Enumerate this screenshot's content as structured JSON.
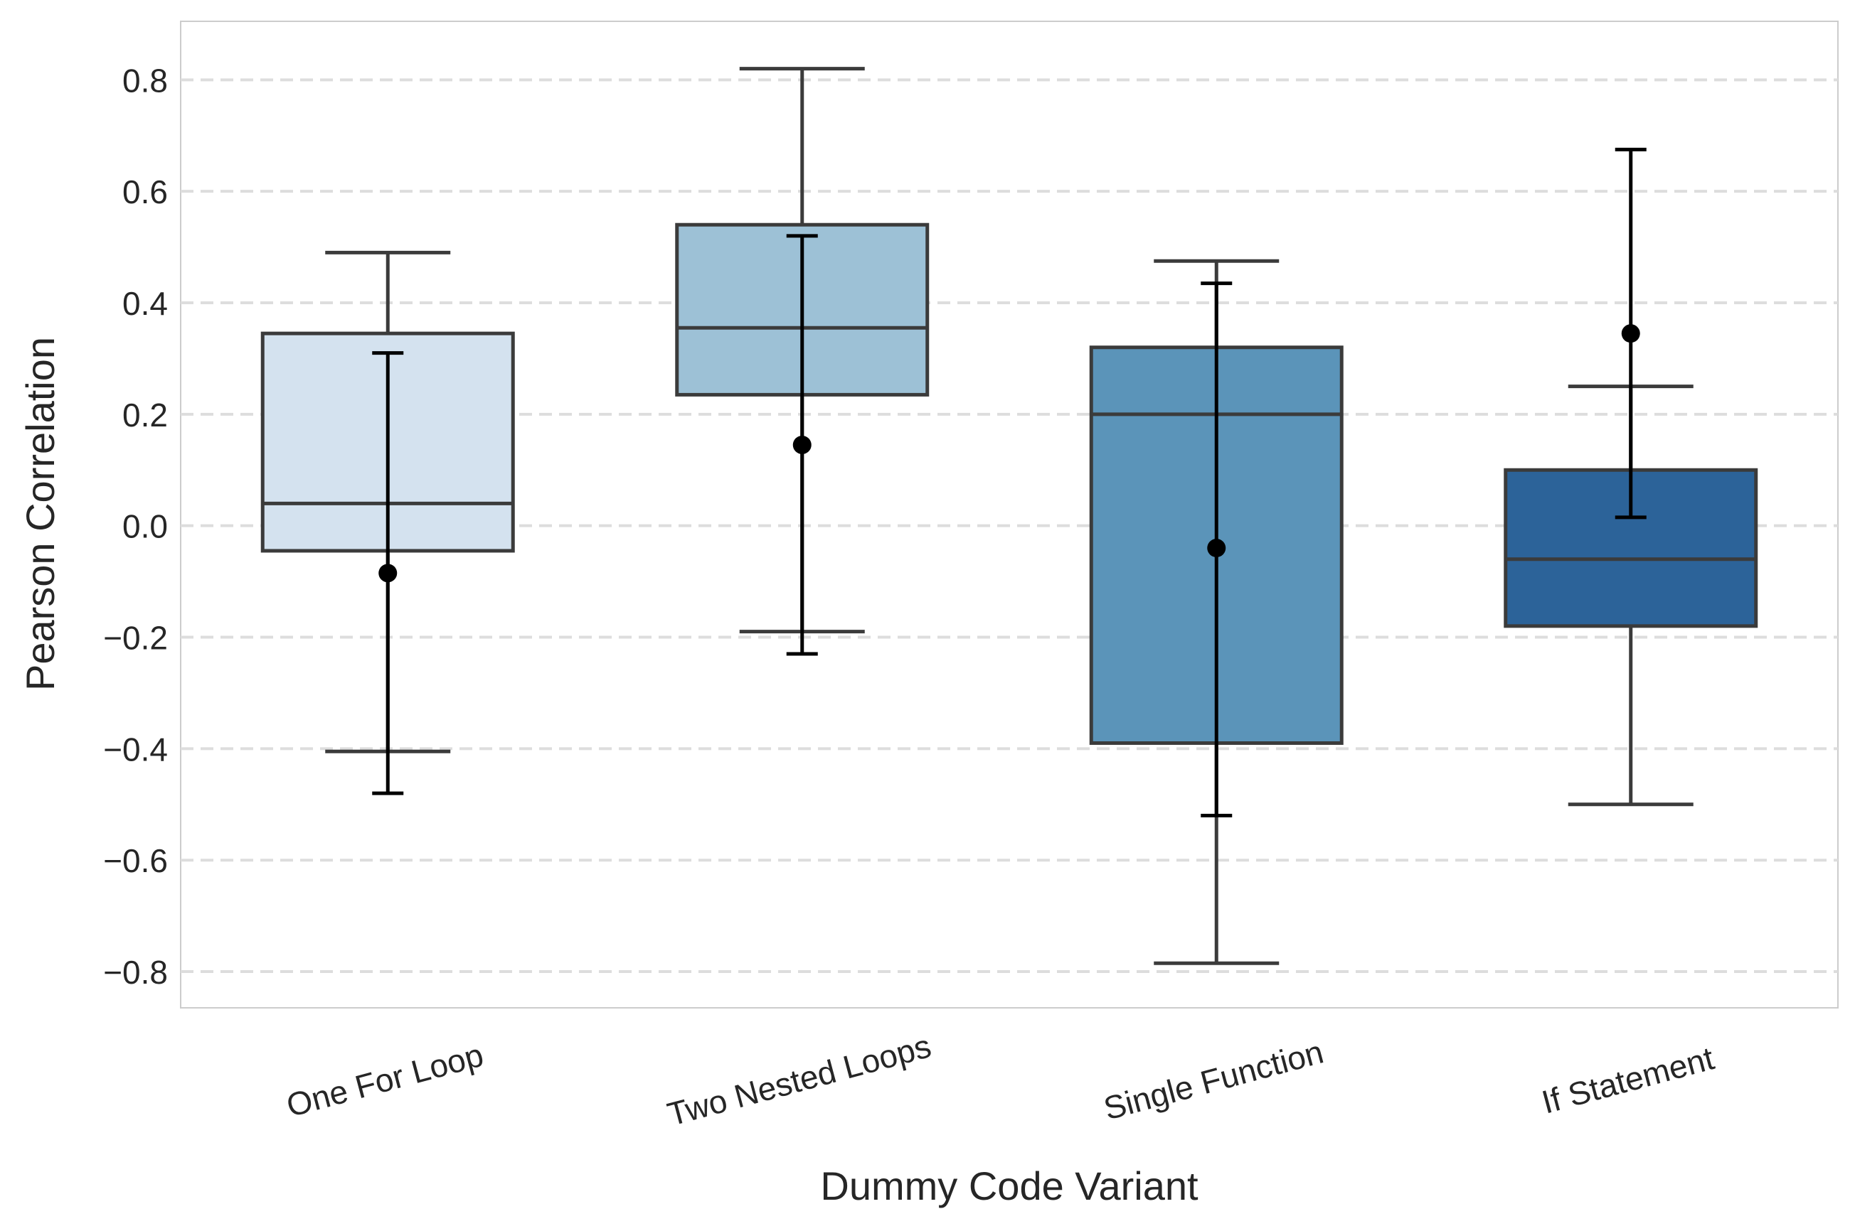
{
  "chart_data": {
    "type": "box",
    "xlabel": "Dummy Code Variant",
    "ylabel": "Pearson Correlation",
    "ylim": [
      -0.865,
      0.905
    ],
    "yticks": [
      0.8,
      0.6,
      0.4,
      0.2,
      0.0,
      -0.2,
      -0.4,
      -0.6,
      -0.8
    ],
    "ytick_labels": [
      "0.8",
      "0.6",
      "0.4",
      "0.2",
      "0.0",
      "−0.2",
      "−0.4",
      "−0.6",
      "−0.8"
    ],
    "grid": "horizontal dashed",
    "categories": [
      "One For Loop",
      "Two Nested Loops",
      "Single Function",
      "If Statement"
    ],
    "boxes": [
      {
        "label": "One For Loop",
        "whisker_low": -0.405,
        "q1": -0.045,
        "median": 0.04,
        "q3": 0.345,
        "whisker_high": 0.49,
        "color": "#d4e2ef"
      },
      {
        "label": "Two Nested Loops",
        "whisker_low": -0.19,
        "q1": 0.235,
        "median": 0.355,
        "q3": 0.54,
        "whisker_high": 0.82,
        "color": "#9dc1d6"
      },
      {
        "label": "Single Function",
        "whisker_low": -0.785,
        "q1": -0.39,
        "median": 0.2,
        "q3": 0.32,
        "whisker_high": 0.475,
        "color": "#5b94b9"
      },
      {
        "label": "If Statement",
        "whisker_low": -0.5,
        "q1": -0.18,
        "median": -0.06,
        "q3": 0.1,
        "whisker_high": 0.25,
        "color": "#2c6399"
      }
    ],
    "mean_points": [
      {
        "label": "One For Loop",
        "mean": -0.085,
        "ci_low": -0.48,
        "ci_high": 0.31
      },
      {
        "label": "Two Nested Loops",
        "mean": 0.145,
        "ci_low": -0.23,
        "ci_high": 0.52
      },
      {
        "label": "Single Function",
        "mean": -0.04,
        "ci_low": -0.52,
        "ci_high": 0.435
      },
      {
        "label": "If Statement",
        "mean": 0.345,
        "ci_low": 0.015,
        "ci_high": 0.675
      }
    ]
  }
}
